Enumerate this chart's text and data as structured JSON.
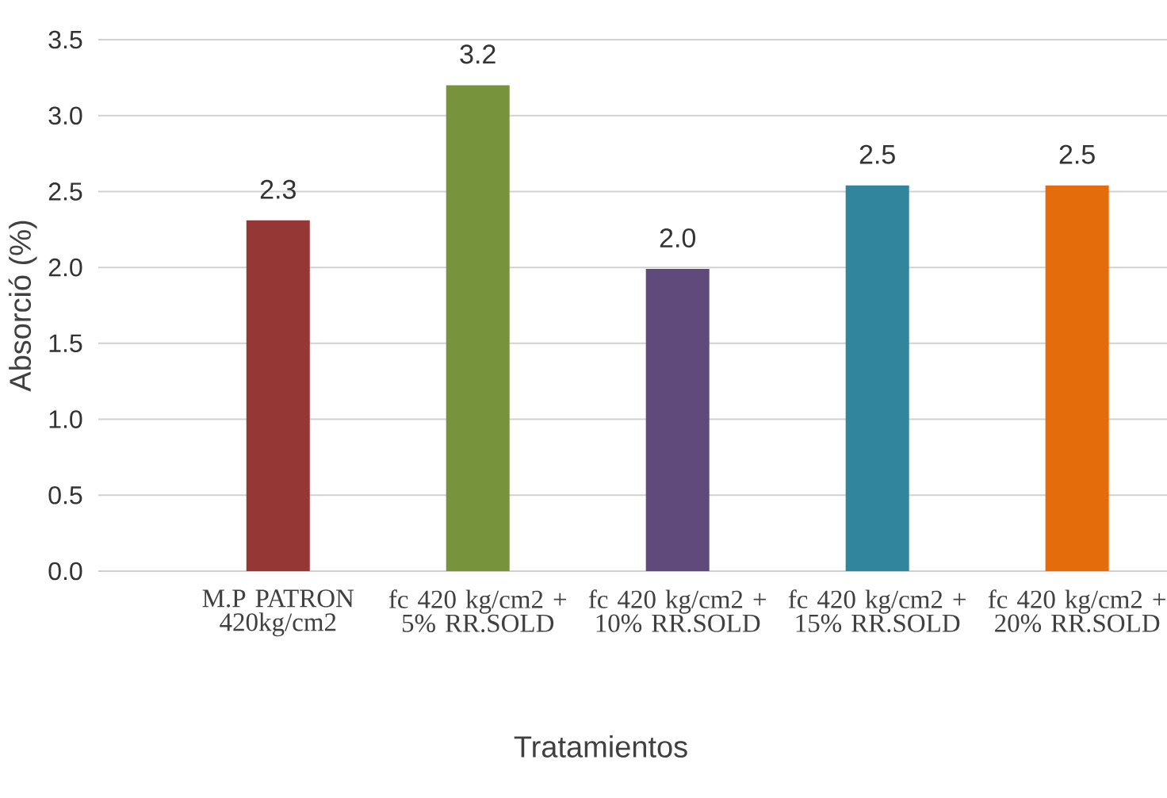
{
  "chart_data": {
    "type": "bar",
    "xlabel": "Tratamientos",
    "ylabel": "Absorció (%)",
    "categories": [
      "M.P PATRON 420kg/cm2",
      "fc 420 kg/cm2 + 5% RR.SOLD",
      "fc 420 kg/cm2 + 10% RR.SOLD",
      "fc 420 kg/cm2 + 15% RR.SOLD",
      "fc 420 kg/cm2 + 20% RR.SOLD"
    ],
    "values": [
      2.31,
      3.2,
      1.99,
      2.54,
      2.54
    ],
    "value_labels": [
      "2.3",
      "3.2",
      "2.0",
      "2.5",
      "2.5"
    ],
    "colors": [
      "#953735",
      "#77933c",
      "#604a7b",
      "#31859c",
      "#e46c0a"
    ],
    "ylim": [
      0,
      3.5
    ],
    "yticks": [
      {
        "value": 0,
        "label": "0.0"
      },
      {
        "value": 0.5,
        "label": "0.5"
      },
      {
        "value": 1,
        "label": "1.0"
      },
      {
        "value": 1.5,
        "label": "1.5"
      },
      {
        "value": 2,
        "label": "2.0"
      },
      {
        "value": 2.5,
        "label": "2.5"
      },
      {
        "value": 3,
        "label": "3.0"
      },
      {
        "value": 3.5,
        "label": "3.5"
      }
    ],
    "grid": "y"
  }
}
